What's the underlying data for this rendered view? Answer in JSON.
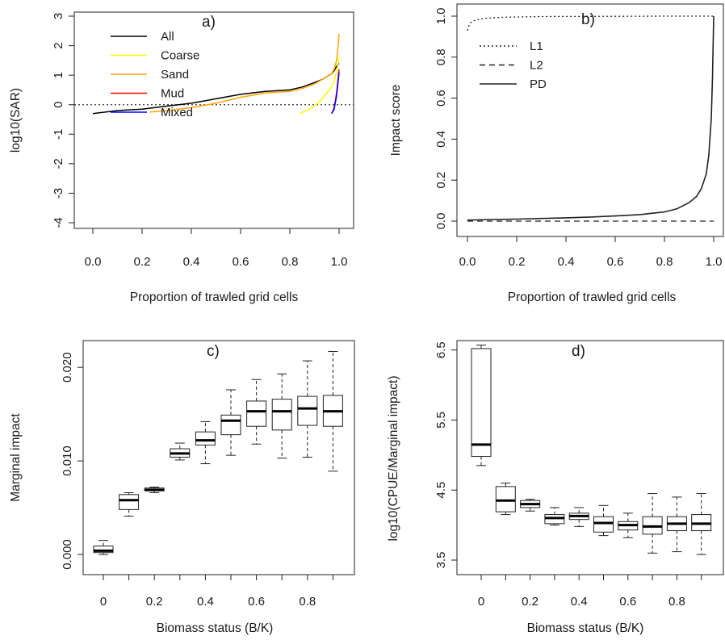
{
  "panels": {
    "a": {
      "label": "a)"
    },
    "b": {
      "label": "b)"
    },
    "c": {
      "label": "c)"
    },
    "d": {
      "label": "d)"
    }
  },
  "chart_data": [
    {
      "id": "a",
      "type": "line",
      "title": "",
      "xlabel": "Proportion of trawled grid cells",
      "ylabel": "log10(SAR)",
      "xlim": [
        0,
        1
      ],
      "ylim": [
        -4,
        3
      ],
      "xticks": [
        "0.0",
        "0.2",
        "0.4",
        "0.6",
        "0.8",
        "1.0"
      ],
      "yticks": [
        "-4",
        "-3",
        "-2",
        "-1",
        "0",
        "1",
        "2",
        "3"
      ],
      "reference_line": {
        "y": 0,
        "style": "dotted"
      },
      "legend": {
        "placement": "top-left"
      },
      "series": [
        {
          "name": "All",
          "color": "#000000",
          "x": [
            0,
            0.05,
            0.1,
            0.2,
            0.3,
            0.4,
            0.5,
            0.6,
            0.7,
            0.8,
            0.85,
            0.9,
            0.93,
            0.95,
            0.97,
            0.98,
            0.99,
            1.0
          ],
          "y": [
            -0.3,
            -0.25,
            -0.2,
            -0.15,
            -0.05,
            0.05,
            0.2,
            0.35,
            0.45,
            0.5,
            0.6,
            0.75,
            0.85,
            0.95,
            1.05,
            1.15,
            1.3,
            1.4
          ]
        },
        {
          "name": "Coarse",
          "color": "#ffff00",
          "x": [
            0.84,
            0.87,
            0.9,
            0.92,
            0.94,
            0.95,
            0.96,
            0.97,
            0.98,
            0.99,
            1.0
          ],
          "y": [
            -0.3,
            -0.2,
            -0.05,
            0.1,
            0.3,
            0.4,
            0.5,
            0.6,
            0.8,
            1.1,
            1.6
          ]
        },
        {
          "name": "Sand",
          "color": "#ffa500",
          "x": [
            0.23,
            0.3,
            0.4,
            0.5,
            0.6,
            0.7,
            0.8,
            0.85,
            0.9,
            0.93,
            0.95,
            0.97,
            0.98,
            0.99,
            0.995,
            1.0
          ],
          "y": [
            -0.25,
            -0.2,
            -0.1,
            0.05,
            0.25,
            0.4,
            0.45,
            0.55,
            0.7,
            0.85,
            0.95,
            1.05,
            1.2,
            1.5,
            1.9,
            2.4
          ]
        },
        {
          "name": "Mud",
          "color": "#ff0000",
          "x": [
            0.97,
            0.98,
            0.99,
            1.0
          ],
          "y": [
            -0.3,
            -0.1,
            0.4,
            1.2
          ]
        },
        {
          "name": "Mixed",
          "color": "#0000ff",
          "x": [
            0.97,
            0.98,
            0.99,
            1.0
          ],
          "y": [
            -0.3,
            -0.15,
            0.3,
            1.1
          ]
        }
      ]
    },
    {
      "id": "b",
      "type": "line",
      "title": "",
      "xlabel": "Proportion of trawled grid cells",
      "ylabel": "Impact score",
      "xlim": [
        0,
        1
      ],
      "ylim": [
        0,
        1
      ],
      "xticks": [
        "0.0",
        "0.2",
        "0.4",
        "0.6",
        "0.8",
        "1.0"
      ],
      "yticks": [
        "0.0",
        "0.2",
        "0.4",
        "0.6",
        "0.8",
        "1.0"
      ],
      "legend": {
        "placement": "top-left"
      },
      "series": [
        {
          "name": "L1",
          "style": "dotted",
          "x": [
            0,
            0.005,
            0.01,
            0.02,
            0.04,
            0.08,
            0.15,
            0.3,
            0.5,
            0.8,
            1.0
          ],
          "y": [
            0.93,
            0.95,
            0.965,
            0.975,
            0.983,
            0.99,
            0.995,
            0.998,
            0.999,
            1.0,
            1.0
          ]
        },
        {
          "name": "L2",
          "style": "dashed",
          "x": [
            0,
            1.0
          ],
          "y": [
            0.0,
            0.0
          ]
        },
        {
          "name": "PD",
          "style": "solid",
          "x": [
            0,
            0.1,
            0.2,
            0.3,
            0.4,
            0.5,
            0.6,
            0.7,
            0.8,
            0.85,
            0.9,
            0.93,
            0.95,
            0.97,
            0.98,
            0.99,
            0.995,
            1.0
          ],
          "y": [
            0.005,
            0.008,
            0.01,
            0.013,
            0.016,
            0.02,
            0.025,
            0.032,
            0.045,
            0.06,
            0.09,
            0.12,
            0.16,
            0.23,
            0.32,
            0.5,
            0.7,
            1.0
          ]
        }
      ]
    },
    {
      "id": "c",
      "type": "box",
      "title": "",
      "xlabel": "Biomass status (B/K)",
      "ylabel": "Marginal impact",
      "ylim": [
        0,
        0.022
      ],
      "categories": [
        "0",
        "0.1",
        "0.2",
        "0.3",
        "0.4",
        "0.5",
        "0.6",
        "0.7",
        "0.8",
        "0.9"
      ],
      "xticks": [
        "0",
        "0.2",
        "0.4",
        "0.6",
        "0.8"
      ],
      "yticks": [
        "0.000",
        "0.010",
        "0.020"
      ],
      "boxes": [
        {
          "min": 0.0,
          "q1": 0.0002,
          "median": 0.0004,
          "q3": 0.0009,
          "max": 0.0015
        },
        {
          "min": 0.0041,
          "q1": 0.0048,
          "median": 0.0058,
          "q3": 0.0064,
          "max": 0.0066
        },
        {
          "min": 0.0066,
          "q1": 0.0068,
          "median": 0.0069,
          "q3": 0.0071,
          "max": 0.0072
        },
        {
          "min": 0.0101,
          "q1": 0.0104,
          "median": 0.0108,
          "q3": 0.0113,
          "max": 0.0119
        },
        {
          "min": 0.0097,
          "q1": 0.0117,
          "median": 0.0122,
          "q3": 0.0131,
          "max": 0.0142
        },
        {
          "min": 0.0106,
          "q1": 0.0128,
          "median": 0.0143,
          "q3": 0.0149,
          "max": 0.0176
        },
        {
          "min": 0.0118,
          "q1": 0.0137,
          "median": 0.0153,
          "q3": 0.0164,
          "max": 0.0187
        },
        {
          "min": 0.0103,
          "q1": 0.0133,
          "median": 0.0153,
          "q3": 0.0166,
          "max": 0.0193
        },
        {
          "min": 0.0104,
          "q1": 0.0138,
          "median": 0.0156,
          "q3": 0.0169,
          "max": 0.0207
        },
        {
          "min": 0.0089,
          "q1": 0.0137,
          "median": 0.0153,
          "q3": 0.017,
          "max": 0.0217
        }
      ]
    },
    {
      "id": "d",
      "type": "box",
      "title": "",
      "xlabel": "Biomass status (B/K)",
      "ylabel": "log10(CPUE/Marginal impact)",
      "ylim": [
        3.5,
        6.6
      ],
      "categories": [
        "0",
        "0.1",
        "0.2",
        "0.3",
        "0.4",
        "0.5",
        "0.6",
        "0.7",
        "0.8",
        "0.9"
      ],
      "xticks": [
        "0",
        "0.2",
        "0.4",
        "0.6",
        "0.8"
      ],
      "yticks": [
        "3.5",
        "4.5",
        "5.5",
        "6.5"
      ],
      "boxes": [
        {
          "min": 4.85,
          "q1": 4.98,
          "median": 5.15,
          "q3": 6.52,
          "max": 6.57
        },
        {
          "min": 4.15,
          "q1": 4.19,
          "median": 4.35,
          "q3": 4.55,
          "max": 4.6
        },
        {
          "min": 4.2,
          "q1": 4.25,
          "median": 4.3,
          "q3": 4.35,
          "max": 4.37
        },
        {
          "min": 4.0,
          "q1": 4.02,
          "median": 4.1,
          "q3": 4.15,
          "max": 4.25
        },
        {
          "min": 3.98,
          "q1": 4.08,
          "median": 4.13,
          "q3": 4.17,
          "max": 4.25
        },
        {
          "min": 3.85,
          "q1": 3.9,
          "median": 4.03,
          "q3": 4.12,
          "max": 4.28
        },
        {
          "min": 3.82,
          "q1": 3.93,
          "median": 4.0,
          "q3": 4.05,
          "max": 4.17
        },
        {
          "min": 3.6,
          "q1": 3.87,
          "median": 3.98,
          "q3": 4.12,
          "max": 4.45
        },
        {
          "min": 3.62,
          "q1": 3.92,
          "median": 4.02,
          "q3": 4.12,
          "max": 4.4
        },
        {
          "min": 3.58,
          "q1": 3.92,
          "median": 4.02,
          "q3": 4.15,
          "max": 4.45
        }
      ]
    }
  ]
}
